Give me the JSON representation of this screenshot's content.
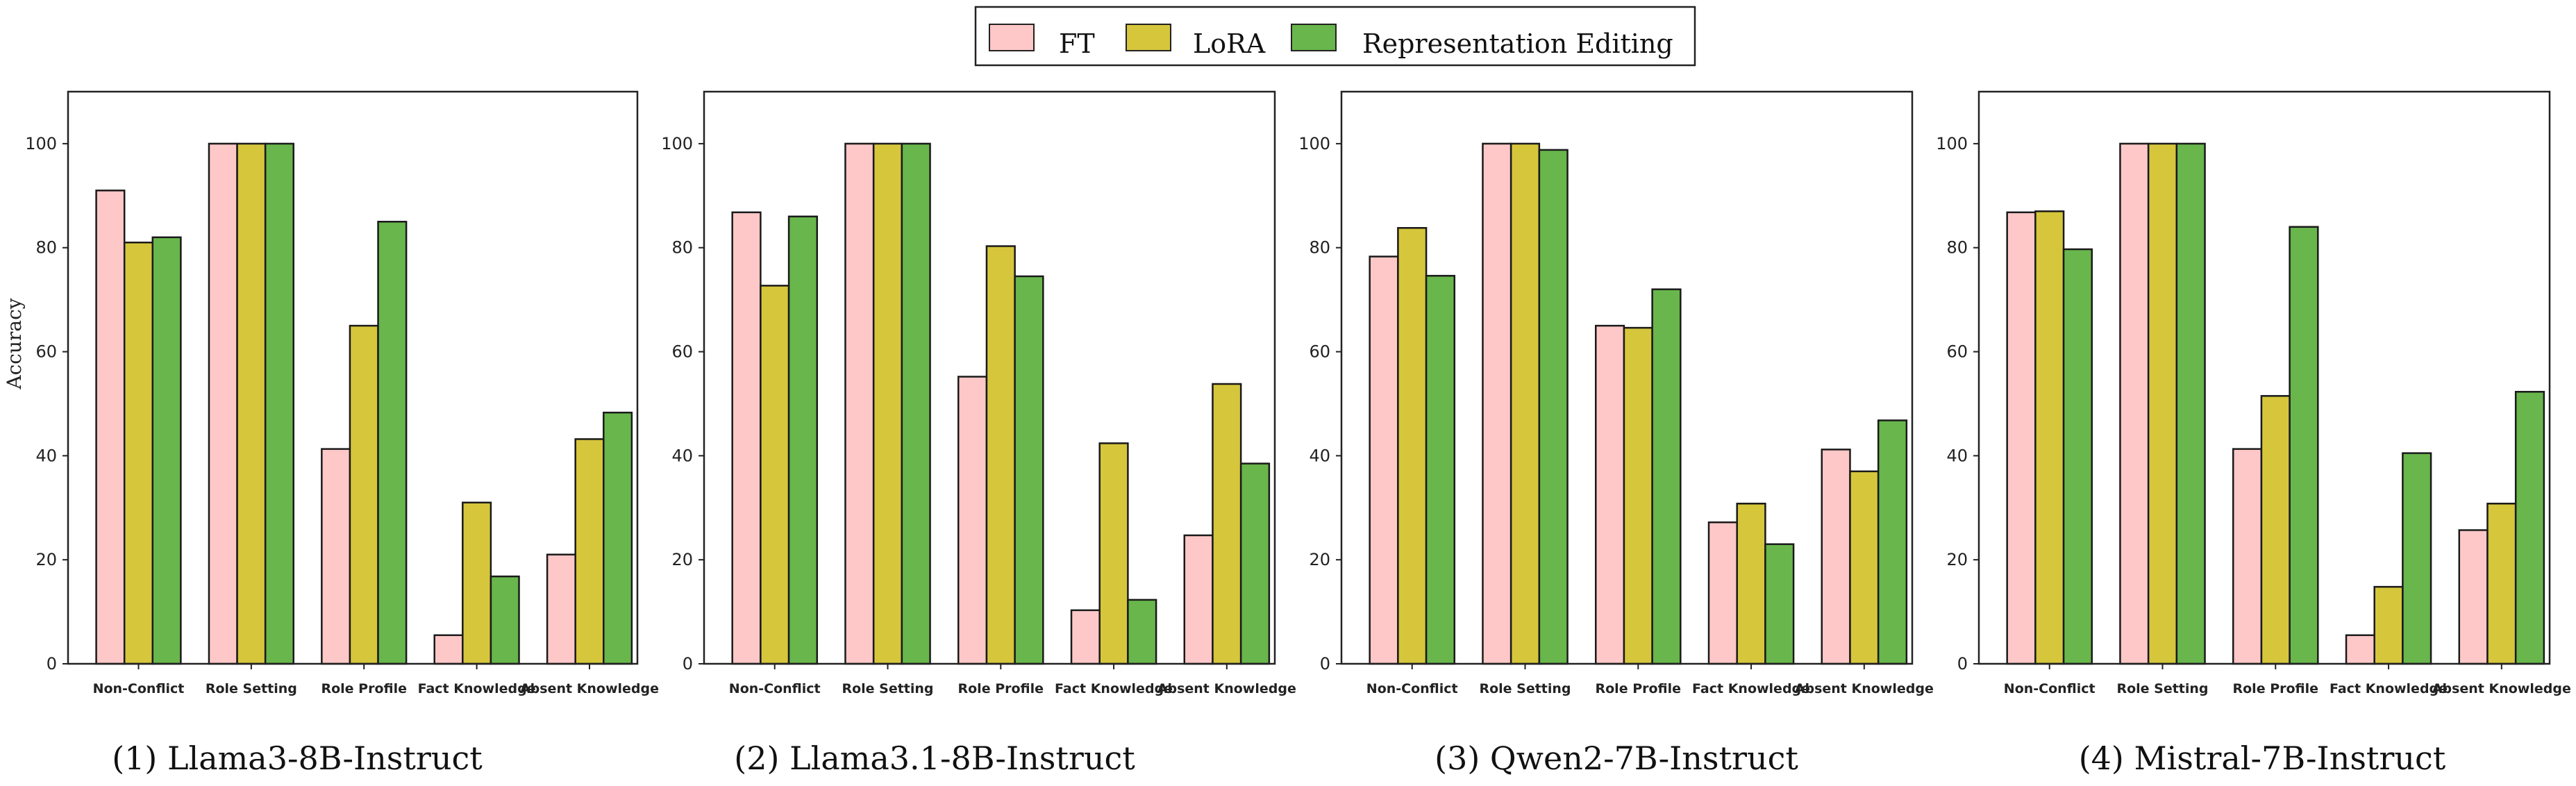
{
  "legend": [
    {
      "name": "FT",
      "color": "#ffc8c8"
    },
    {
      "name": "LoRA",
      "color": "#d6c63c"
    },
    {
      "name": "Representation Editing",
      "color": "#68b64c"
    }
  ],
  "chart_data": [
    {
      "type": "bar",
      "title": "(1) Llama3-8B-Instruct",
      "ylabel": "Accuracy",
      "ylim": [
        0,
        110
      ],
      "yticks": [
        0,
        20,
        40,
        60,
        80,
        100
      ],
      "categories": [
        "Non-Conflict",
        "Role Setting",
        "Role Profile",
        "Fact Knowledge",
        "Absent  Knowledge"
      ],
      "series": [
        {
          "name": "FT",
          "values": [
            91,
            100,
            41.3,
            5.5,
            21
          ]
        },
        {
          "name": "LoRA",
          "values": [
            81,
            100,
            65,
            31,
            43.2
          ]
        },
        {
          "name": "Representation Editing",
          "values": [
            82,
            100,
            85,
            16.8,
            48.3
          ]
        }
      ]
    },
    {
      "type": "bar",
      "title": "(2) Llama3.1-8B-Instruct",
      "ylabel": "",
      "ylim": [
        0,
        110
      ],
      "yticks": [
        0,
        20,
        40,
        60,
        80,
        100
      ],
      "categories": [
        "Non-Conflict",
        "Role Setting",
        "Role Profile",
        "Fact Knowledge",
        "Absent  Knowledge"
      ],
      "series": [
        {
          "name": "FT",
          "values": [
            86.8,
            100,
            55.2,
            10.3,
            24.7
          ]
        },
        {
          "name": "LoRA",
          "values": [
            72.7,
            100,
            80.3,
            42.4,
            53.8
          ]
        },
        {
          "name": "Representation Editing",
          "values": [
            86,
            100,
            74.5,
            12.3,
            38.5
          ]
        }
      ]
    },
    {
      "type": "bar",
      "title": "(3) Qwen2-7B-Instruct",
      "ylabel": "",
      "ylim": [
        0,
        110
      ],
      "yticks": [
        0,
        20,
        40,
        60,
        80,
        100
      ],
      "categories": [
        "Non-Conflict",
        "Role Setting",
        "Role Profile",
        "Fact Knowledge",
        "Absent  Knowledge"
      ],
      "series": [
        {
          "name": "FT",
          "values": [
            78.3,
            100,
            65,
            27.2,
            41.2
          ]
        },
        {
          "name": "LoRA",
          "values": [
            83.8,
            100,
            64.6,
            30.8,
            37
          ]
        },
        {
          "name": "Representation Editing",
          "values": [
            74.6,
            98.8,
            72,
            23,
            46.8
          ]
        }
      ]
    },
    {
      "type": "bar",
      "title": "(4) Mistral-7B-Instruct",
      "ylabel": "",
      "ylim": [
        0,
        110
      ],
      "yticks": [
        0,
        20,
        40,
        60,
        80,
        100
      ],
      "categories": [
        "Non-Conflict",
        "Role Setting",
        "Role Profile",
        "Fact Knowledge",
        "Absent  Knowledge"
      ],
      "series": [
        {
          "name": "FT",
          "values": [
            86.8,
            100,
            41.3,
            5.5,
            25.7
          ]
        },
        {
          "name": "LoRA",
          "values": [
            87,
            100,
            51.5,
            14.8,
            30.8
          ]
        },
        {
          "name": "Representation Editing",
          "values": [
            79.7,
            100,
            84,
            40.5,
            52.3
          ]
        }
      ]
    }
  ]
}
